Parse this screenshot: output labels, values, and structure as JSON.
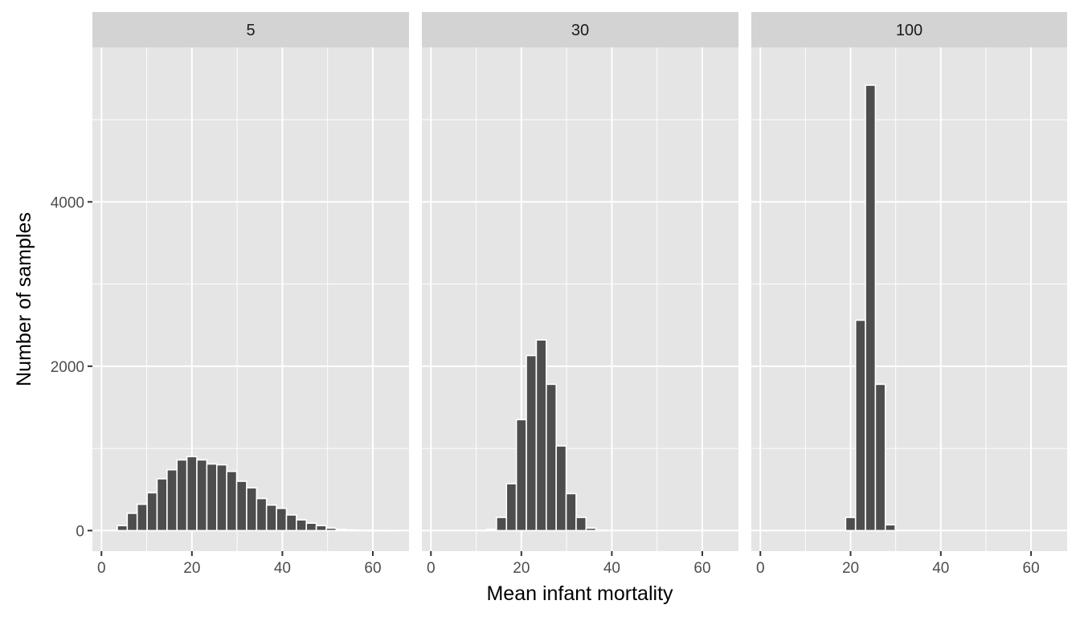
{
  "chart_data": {
    "type": "bar",
    "subtype": "histogram",
    "xlabel": "Mean infant mortality",
    "ylabel": "Number of samples",
    "xlim": [
      -2,
      68
    ],
    "ylim": [
      -250,
      5880
    ],
    "x_ticks": [
      0,
      20,
      40,
      60
    ],
    "y_ticks": [
      0,
      2000,
      4000
    ],
    "bin_width": 2.2,
    "grid": true,
    "bar_fill": "#4d4d4d",
    "bar_outline": "#ffffff",
    "panel_background": "#e5e5e5",
    "strip_background": "#d3d3d3",
    "facets": [
      {
        "label": "5",
        "bins": [
          {
            "x": 4.6,
            "count": 60
          },
          {
            "x": 6.8,
            "count": 210
          },
          {
            "x": 9.0,
            "count": 320
          },
          {
            "x": 11.2,
            "count": 460
          },
          {
            "x": 13.4,
            "count": 630
          },
          {
            "x": 15.6,
            "count": 740
          },
          {
            "x": 17.8,
            "count": 860
          },
          {
            "x": 20.0,
            "count": 900
          },
          {
            "x": 22.2,
            "count": 860
          },
          {
            "x": 24.4,
            "count": 810
          },
          {
            "x": 26.6,
            "count": 800
          },
          {
            "x": 28.8,
            "count": 720
          },
          {
            "x": 31.0,
            "count": 600
          },
          {
            "x": 33.2,
            "count": 520
          },
          {
            "x": 35.4,
            "count": 390
          },
          {
            "x": 37.6,
            "count": 310
          },
          {
            "x": 39.8,
            "count": 270
          },
          {
            "x": 42.0,
            "count": 190
          },
          {
            "x": 44.2,
            "count": 130
          },
          {
            "x": 46.4,
            "count": 90
          },
          {
            "x": 48.6,
            "count": 60
          },
          {
            "x": 50.8,
            "count": 30
          },
          {
            "x": 53.0,
            "count": 15
          },
          {
            "x": 55.2,
            "count": 8
          },
          {
            "x": 57.4,
            "count": 5
          },
          {
            "x": 59.6,
            "count": 3
          },
          {
            "x": 61.8,
            "count": 2
          },
          {
            "x": 64.0,
            "count": 1
          }
        ]
      },
      {
        "label": "30",
        "bins": [
          {
            "x": 11.2,
            "count": 3
          },
          {
            "x": 13.4,
            "count": 15
          },
          {
            "x": 15.6,
            "count": 160
          },
          {
            "x": 17.8,
            "count": 570
          },
          {
            "x": 20.0,
            "count": 1350
          },
          {
            "x": 22.2,
            "count": 2130
          },
          {
            "x": 24.4,
            "count": 2320
          },
          {
            "x": 26.6,
            "count": 1780
          },
          {
            "x": 28.8,
            "count": 1030
          },
          {
            "x": 31.0,
            "count": 450
          },
          {
            "x": 33.2,
            "count": 160
          },
          {
            "x": 35.4,
            "count": 30
          },
          {
            "x": 37.6,
            "count": 5
          }
        ]
      },
      {
        "label": "100",
        "bins": [
          {
            "x": 20.0,
            "count": 160
          },
          {
            "x": 22.2,
            "count": 2560
          },
          {
            "x": 24.4,
            "count": 5420
          },
          {
            "x": 26.6,
            "count": 1780
          },
          {
            "x": 28.8,
            "count": 70
          }
        ]
      }
    ]
  }
}
